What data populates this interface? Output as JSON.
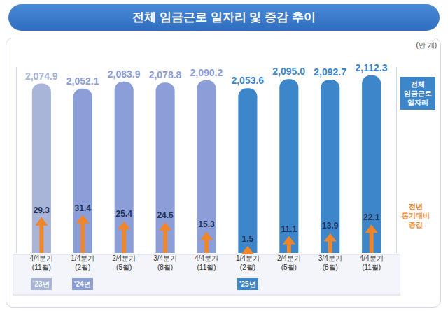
{
  "chart_data": {
    "type": "bar",
    "title": "전체 임금근로 일자리 및 증감 추이",
    "ylabel": "(만 개)",
    "categories": [
      "4/4분기 (11월)",
      "1/4분기 (2월)",
      "2/4분기 (5월)",
      "3/4분기 (8월)",
      "4/4분기 (11월)",
      "1/4분기 (2월)",
      "2/4분기 (5월)",
      "3/4분기 (8월)",
      "4/4분기 (11월)"
    ],
    "series": [
      {
        "name": "전체 임금근로 일자리",
        "type": "bar",
        "color": "#3d86c9",
        "colors": [
          "#a8b4d8",
          "#8c9ed8",
          "#8c9ed8",
          "#8c9ed8",
          "#8c9ed8",
          "#3d86c9",
          "#3d86c9",
          "#3d86c9",
          "#3d86c9"
        ],
        "values": [
          2074.9,
          2052.1,
          2083.9,
          2078.8,
          2090.2,
          2053.6,
          2095.0,
          2092.7,
          2112.3
        ],
        "value_labels": [
          "2,074.9",
          "2,052.1",
          "2,083.9",
          "2,078.8",
          "2,090.2",
          "2,053.6",
          "2,095.0",
          "2,092.7",
          "2,112.3"
        ]
      },
      {
        "name": "전년 동기대비 증감",
        "type": "bar",
        "marker": "arrow",
        "color": "#f0862a",
        "axis": "y2",
        "values": [
          29.3,
          31.4,
          25.4,
          24.6,
          15.3,
          1.5,
          11.1,
          13.9,
          22.1
        ]
      }
    ],
    "annotations": [
      {
        "at": 0,
        "text": "'23년"
      },
      {
        "at": 1,
        "text": "'24년"
      },
      {
        "at": 5,
        "text": "'25년"
      }
    ],
    "ylim": [
      1300,
      2150
    ],
    "y2lim": [
      0,
      180
    ],
    "tick_labels": false,
    "grid": false,
    "data_labels": true,
    "legend": "right"
  }
}
